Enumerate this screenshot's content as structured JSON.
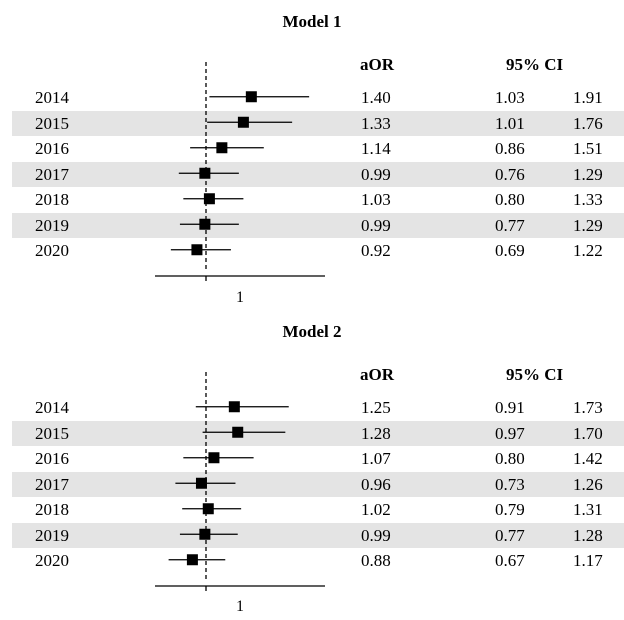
{
  "chart_data": [
    {
      "type": "forest",
      "title": "Model 1",
      "columns": {
        "estimate": "aOR",
        "ci": "95% CI"
      },
      "reference_line": 1,
      "x_ticks": [
        "1"
      ],
      "xlim": [
        0.55,
        2.05
      ],
      "shaded_rows": [
        1,
        3,
        5
      ],
      "rows": [
        {
          "label": "2014",
          "aor": "1.40",
          "lo": "1.03",
          "hi": "1.91"
        },
        {
          "label": "2015",
          "aor": "1.33",
          "lo": "1.01",
          "hi": "1.76"
        },
        {
          "label": "2016",
          "aor": "1.14",
          "lo": "0.86",
          "hi": "1.51"
        },
        {
          "label": "2017",
          "aor": "0.99",
          "lo": "0.76",
          "hi": "1.29"
        },
        {
          "label": "2018",
          "aor": "1.03",
          "lo": "0.80",
          "hi": "1.33"
        },
        {
          "label": "2019",
          "aor": "0.99",
          "lo": "0.77",
          "hi": "1.29"
        },
        {
          "label": "2020",
          "aor": "0.92",
          "lo": "0.69",
          "hi": "1.22"
        }
      ]
    },
    {
      "type": "forest",
      "title": "Model 2",
      "columns": {
        "estimate": "aOR",
        "ci": "95% CI"
      },
      "reference_line": 1,
      "x_ticks": [
        "1"
      ],
      "xlim": [
        0.55,
        2.05
      ],
      "shaded_rows": [
        1,
        3,
        5
      ],
      "rows": [
        {
          "label": "2014",
          "aor": "1.25",
          "lo": "0.91",
          "hi": "1.73"
        },
        {
          "label": "2015",
          "aor": "1.28",
          "lo": "0.97",
          "hi": "1.70"
        },
        {
          "label": "2016",
          "aor": "1.07",
          "lo": "0.80",
          "hi": "1.42"
        },
        {
          "label": "2017",
          "aor": "0.96",
          "lo": "0.73",
          "hi": "1.26"
        },
        {
          "label": "2018",
          "aor": "1.02",
          "lo": "0.79",
          "hi": "1.31"
        },
        {
          "label": "2019",
          "aor": "0.99",
          "lo": "0.77",
          "hi": "1.28"
        },
        {
          "label": "2020",
          "aor": "0.88",
          "lo": "0.67",
          "hi": "1.17"
        }
      ]
    }
  ]
}
